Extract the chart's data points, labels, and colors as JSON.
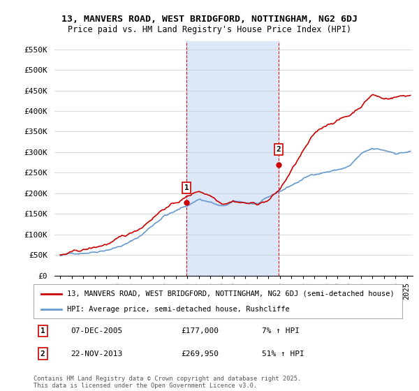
{
  "title1": "13, MANVERS ROAD, WEST BRIDGFORD, NOTTINGHAM, NG2 6DJ",
  "title2": "Price paid vs. HM Land Registry's House Price Index (HPI)",
  "ylabel_ticks": [
    "£0",
    "£50K",
    "£100K",
    "£150K",
    "£200K",
    "£250K",
    "£300K",
    "£350K",
    "£400K",
    "£450K",
    "£500K",
    "£550K"
  ],
  "ytick_values": [
    0,
    50000,
    100000,
    150000,
    200000,
    250000,
    300000,
    350000,
    400000,
    450000,
    500000,
    550000
  ],
  "ylim": [
    0,
    570000
  ],
  "xlim_start": 1994.5,
  "xlim_end": 2025.5,
  "purchase1_x": 2005.92,
  "purchase1_y": 177000,
  "purchase2_x": 2013.9,
  "purchase2_y": 269950,
  "legend_line1": "13, MANVERS ROAD, WEST BRIDGFORD, NOTTINGHAM, NG2 6DJ (semi-detached house)",
  "legend_line2": "HPI: Average price, semi-detached house, Rushcliffe",
  "annotation1_label": "1",
  "annotation1_date": "07-DEC-2005",
  "annotation1_price": "£177,000",
  "annotation1_hpi": "7% ↑ HPI",
  "annotation2_label": "2",
  "annotation2_date": "22-NOV-2013",
  "annotation2_price": "£269,950",
  "annotation2_hpi": "51% ↑ HPI",
  "footer": "Contains HM Land Registry data © Crown copyright and database right 2025.\nThis data is licensed under the Open Government Licence v3.0.",
  "line_color_red": "#cc0000",
  "line_color_blue": "#6699cc",
  "plot_bg": "#ffffff",
  "shade_color": "#dce8f8",
  "vline_color": "#cc0000",
  "grid_color": "#cccccc"
}
